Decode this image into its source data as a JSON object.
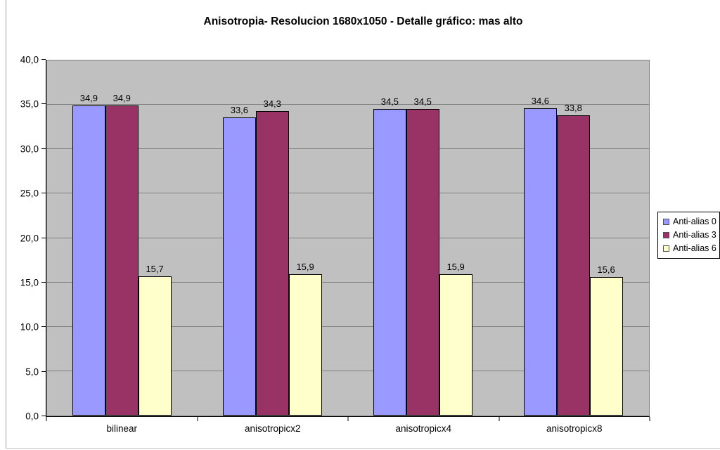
{
  "window": {
    "background": "#FFFFFF",
    "frame_border_color": "#A3A3A3"
  },
  "chart_data": {
    "type": "bar",
    "title": "Anisotropia- Resolucion 1680x1050 - Detalle gráfico: mas alto",
    "categories": [
      "bilinear",
      "anisotropicx2",
      "anisotropicx4",
      "anisotropicx8"
    ],
    "series": [
      {
        "name": "Anti-alias 0",
        "color": "#9999FF",
        "values": [
          34.9,
          33.6,
          34.5,
          34.6
        ]
      },
      {
        "name": "Anti-alias 3",
        "color": "#993366",
        "values": [
          34.9,
          34.3,
          34.5,
          33.8
        ]
      },
      {
        "name": "Anti-alias 6",
        "color": "#FFFFCC",
        "values": [
          15.7,
          15.9,
          15.9,
          15.6
        ]
      }
    ],
    "data_labels": [
      [
        "34,9",
        "33,6",
        "34,5",
        "34,6"
      ],
      [
        "34,9",
        "34,3",
        "34,5",
        "33,8"
      ],
      [
        "15,7",
        "15,9",
        "15,9",
        "15,6"
      ]
    ],
    "xlabel": "",
    "ylabel": "",
    "ylim": [
      0,
      40
    ],
    "ytick_step": 5,
    "ytick_labels": [
      "0,0",
      "5,0",
      "10,0",
      "15,0",
      "20,0",
      "25,0",
      "30,0",
      "35,0",
      "40,0"
    ],
    "grid": true,
    "decimal_separator": ",",
    "legend": {
      "position": "right",
      "entries": [
        "Anti-alias 0",
        "Anti-alias 3",
        "Anti-alias 6"
      ]
    },
    "colors": {
      "plot_bg": "#C0C0C0",
      "gridline": "#808080",
      "axis": "#000000",
      "bar_border": "#000000",
      "label_text": "#000000"
    }
  }
}
